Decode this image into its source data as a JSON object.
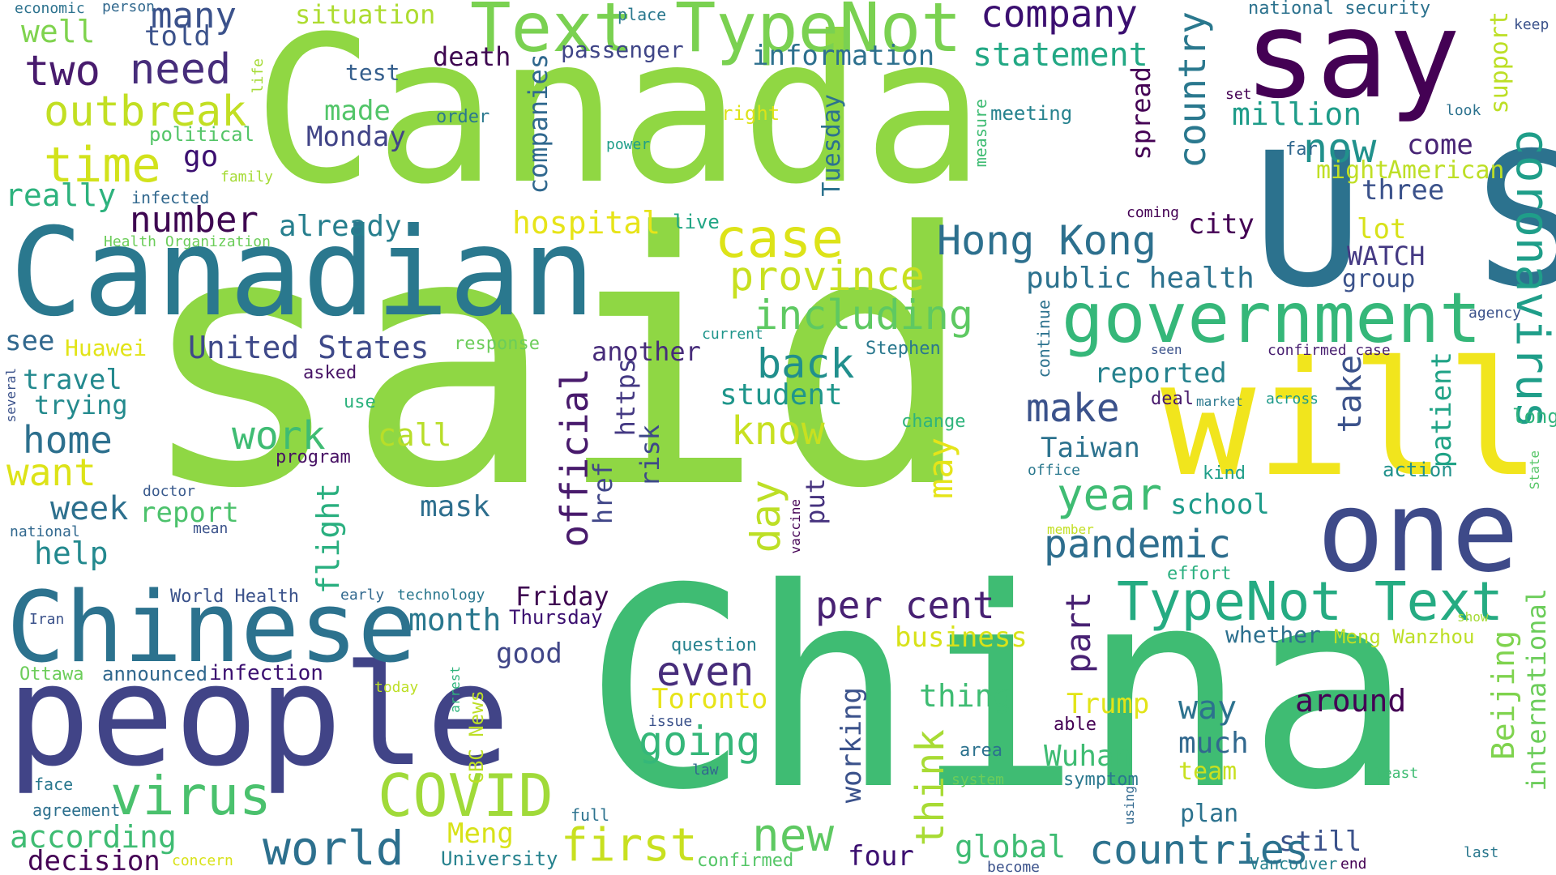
{
  "words": [
    {
      "text": "said",
      "color": "#8fd744"
    },
    {
      "text": "China",
      "color": "#3fbc73"
    },
    {
      "text": "Canada",
      "color": "#90d743"
    },
    {
      "text": "U S",
      "color": "#2c728e"
    },
    {
      "text": "Canadian",
      "color": "#2a788e"
    },
    {
      "text": "people",
      "color": "#414487"
    },
    {
      "text": "say",
      "color": "#440154"
    },
    {
      "text": "will",
      "color": "#f1e51d"
    },
    {
      "text": "one",
      "color": "#3e4a89"
    },
    {
      "text": "Chinese",
      "color": "#2c728e"
    },
    {
      "text": "Text TypeNot",
      "color": "#7ad151"
    },
    {
      "text": "government",
      "color": "#35b779"
    },
    {
      "text": "TypeNot Text",
      "color": "#25ab82"
    },
    {
      "text": "coronavirus",
      "color": "#1f9e89"
    },
    {
      "text": "COVID",
      "color": "#a0da39"
    },
    {
      "text": "virus",
      "color": "#4ac16d"
    },
    {
      "text": "outbreak",
      "color": "#c2df23"
    },
    {
      "text": "time",
      "color": "#d2e21b"
    },
    {
      "text": "two",
      "color": "#481b6d"
    },
    {
      "text": "need",
      "color": "#472d7b"
    },
    {
      "text": "many",
      "color": "#3b528b"
    },
    {
      "text": "company",
      "color": "#3b0f70"
    },
    {
      "text": "statement",
      "color": "#22a884"
    },
    {
      "text": "information",
      "color": "#2d708e"
    },
    {
      "text": "situation",
      "color": "#addc30"
    },
    {
      "text": "country",
      "color": "#2a788e"
    },
    {
      "text": "million",
      "color": "#1e9c89"
    },
    {
      "text": "now",
      "color": "#21918c"
    },
    {
      "text": "come",
      "color": "#482475"
    },
    {
      "text": "support",
      "color": "#bddf26"
    },
    {
      "text": "American",
      "color": "#bddf26"
    },
    {
      "text": "might",
      "color": "#c0df25"
    },
    {
      "text": "three",
      "color": "#3b528b"
    },
    {
      "text": "spread",
      "color": "#440154"
    },
    {
      "text": "companies",
      "color": "#30688e"
    },
    {
      "text": "Tuesday",
      "color": "#2c728e"
    },
    {
      "text": "death",
      "color": "#3e0751"
    },
    {
      "text": "passenger",
      "color": "#404688"
    },
    {
      "text": "test",
      "color": "#355f8d"
    },
    {
      "text": "made",
      "color": "#52c569"
    },
    {
      "text": "Monday",
      "color": "#414487"
    },
    {
      "text": "order",
      "color": "#2a788e"
    },
    {
      "text": "right",
      "color": "#dde318"
    },
    {
      "text": "meeting",
      "color": "#26828e"
    },
    {
      "text": "power",
      "color": "#1f9e89"
    },
    {
      "text": "political",
      "color": "#54c568"
    },
    {
      "text": "family",
      "color": "#a5db36"
    },
    {
      "text": "infected",
      "color": "#31688e"
    },
    {
      "text": "really",
      "color": "#2db27d"
    },
    {
      "text": "number",
      "color": "#3e0751"
    },
    {
      "text": "go",
      "color": "#3b0f70"
    },
    {
      "text": "hospital",
      "color": "#e7e419"
    },
    {
      "text": "live",
      "color": "#21a685"
    },
    {
      "text": "already",
      "color": "#277f8e"
    },
    {
      "text": "case",
      "color": "#dde318"
    },
    {
      "text": "Hong Kong",
      "color": "#2d708e"
    },
    {
      "text": "city",
      "color": "#440154"
    },
    {
      "text": "lot",
      "color": "#d8e219"
    },
    {
      "text": "WATCH",
      "color": "#443983"
    },
    {
      "text": "group",
      "color": "#3b528b"
    },
    {
      "text": "province",
      "color": "#c8e020"
    },
    {
      "text": "including",
      "color": "#5ec962"
    },
    {
      "text": "public health",
      "color": "#2c728e"
    },
    {
      "text": "Huawei",
      "color": "#e2e418"
    },
    {
      "text": "United States",
      "color": "#3e4989"
    },
    {
      "text": "response",
      "color": "#6ccd5a"
    },
    {
      "text": "another",
      "color": "#472c7a"
    },
    {
      "text": "current",
      "color": "#1f958b"
    },
    {
      "text": "Stephen",
      "color": "#2a788e"
    },
    {
      "text": "confirmed case",
      "color": "#481f70"
    },
    {
      "text": "agency",
      "color": "#3b528b"
    },
    {
      "text": "see",
      "color": "#31688e"
    },
    {
      "text": "travel",
      "color": "#23898e"
    },
    {
      "text": "trying",
      "color": "#238a8d"
    },
    {
      "text": "home",
      "color": "#2d708e"
    },
    {
      "text": "want",
      "color": "#dde318"
    },
    {
      "text": "work",
      "color": "#3fbc73"
    },
    {
      "text": "call",
      "color": "#b8de29"
    },
    {
      "text": "back",
      "color": "#218f8d"
    },
    {
      "text": "student",
      "color": "#1f968b"
    },
    {
      "text": "know",
      "color": "#c8e020"
    },
    {
      "text": "official",
      "color": "#481a6c"
    },
    {
      "text": "https",
      "color": "#443983"
    },
    {
      "text": "href",
      "color": "#404688"
    },
    {
      "text": "risk",
      "color": "#3e4989"
    },
    {
      "text": "make",
      "color": "#3b528b"
    },
    {
      "text": "reported",
      "color": "#26828e"
    },
    {
      "text": "take",
      "color": "#3b528b"
    },
    {
      "text": "patient",
      "color": "#20a386"
    },
    {
      "text": "long",
      "color": "#2fb47c"
    },
    {
      "text": "across",
      "color": "#1f9a8a"
    },
    {
      "text": "market",
      "color": "#2a788e"
    },
    {
      "text": "deal",
      "color": "#481a6c"
    },
    {
      "text": "seen",
      "color": "#3b528b"
    },
    {
      "text": "continue",
      "color": "#2c728e"
    },
    {
      "text": "Taiwan",
      "color": "#2c728e"
    },
    {
      "text": "year",
      "color": "#3fbc73"
    },
    {
      "text": "school",
      "color": "#1e9b8a"
    },
    {
      "text": "pandemic",
      "color": "#2e6e8e"
    },
    {
      "text": "day",
      "color": "#bddf26"
    },
    {
      "text": "may",
      "color": "#e5e419"
    },
    {
      "text": "put",
      "color": "#46327e"
    },
    {
      "text": "change",
      "color": "#2fb47c"
    },
    {
      "text": "action",
      "color": "#21918c"
    },
    {
      "text": "kind",
      "color": "#1f9e89"
    },
    {
      "text": "office",
      "color": "#2a788e"
    },
    {
      "text": "State",
      "color": "#56c667"
    },
    {
      "text": "week",
      "color": "#2d708e"
    },
    {
      "text": "report",
      "color": "#4cc26c"
    },
    {
      "text": "mask",
      "color": "#2e6f8e"
    },
    {
      "text": "flight",
      "color": "#29af7f"
    },
    {
      "text": "help",
      "color": "#23898e"
    },
    {
      "text": "asked",
      "color": "#481467"
    },
    {
      "text": "use",
      "color": "#2db27d"
    },
    {
      "text": "program",
      "color": "#471164"
    },
    {
      "text": "doctor",
      "color": "#38598c"
    },
    {
      "text": "mean",
      "color": "#3b528b"
    },
    {
      "text": "national",
      "color": "#31688e"
    },
    {
      "text": "several",
      "color": "#3b528b"
    },
    {
      "text": "vaccine",
      "color": "#440154"
    },
    {
      "text": "member",
      "color": "#c2df23"
    },
    {
      "text": "effort",
      "color": "#29af7f"
    },
    {
      "text": "Friday",
      "color": "#3e0751"
    },
    {
      "text": "per cent",
      "color": "#482173"
    },
    {
      "text": "part",
      "color": "#482173"
    },
    {
      "text": "business",
      "color": "#d8e219"
    },
    {
      "text": "whether",
      "color": "#2d708e"
    },
    {
      "text": "Meng Wanzhou",
      "color": "#bddf26"
    },
    {
      "text": "Beijing",
      "color": "#7fd34e"
    },
    {
      "text": "international",
      "color": "#6ccd5a"
    },
    {
      "text": "show",
      "color": "#a5db36"
    },
    {
      "text": "World Health",
      "color": "#3b528b"
    },
    {
      "text": "early",
      "color": "#31688e"
    },
    {
      "text": "technology",
      "color": "#2a788e"
    },
    {
      "text": "Iran",
      "color": "#3b528b"
    },
    {
      "text": "month",
      "color": "#2a788e"
    },
    {
      "text": "Thursday",
      "color": "#3b0f70"
    },
    {
      "text": "good",
      "color": "#404688"
    },
    {
      "text": "question",
      "color": "#26828e"
    },
    {
      "text": "even",
      "color": "#472d7b"
    },
    {
      "text": "going",
      "color": "#35b779"
    },
    {
      "text": "Toronto",
      "color": "#e7e419"
    },
    {
      "text": "thing",
      "color": "#3fbc73"
    },
    {
      "text": "Trump",
      "color": "#e2e418"
    },
    {
      "text": "around",
      "color": "#440154"
    },
    {
      "text": "way",
      "color": "#2c728e"
    },
    {
      "text": "much",
      "color": "#31688e"
    },
    {
      "text": "team",
      "color": "#c8e020"
    },
    {
      "text": "Wuhan",
      "color": "#3fbc73"
    },
    {
      "text": "working",
      "color": "#3b528b"
    },
    {
      "text": "think",
      "color": "#a8db34"
    },
    {
      "text": "able",
      "color": "#440154"
    },
    {
      "text": "area",
      "color": "#2c728e"
    },
    {
      "text": "system",
      "color": "#6ccd5a"
    },
    {
      "text": "symptom",
      "color": "#2a788e"
    },
    {
      "text": "using",
      "color": "#31688e"
    },
    {
      "text": "least",
      "color": "#3fbc73"
    },
    {
      "text": "plan",
      "color": "#2c728e"
    },
    {
      "text": "still",
      "color": "#3b528b"
    },
    {
      "text": "Vancouver",
      "color": "#26828e"
    },
    {
      "text": "last",
      "color": "#2a788e"
    },
    {
      "text": "end",
      "color": "#440154"
    },
    {
      "text": "become",
      "color": "#3b528b"
    },
    {
      "text": "countries",
      "color": "#2c728e"
    },
    {
      "text": "global",
      "color": "#3fbc73"
    },
    {
      "text": "four",
      "color": "#3b0f70"
    },
    {
      "text": "confirmed",
      "color": "#55c667"
    },
    {
      "text": "first",
      "color": "#c8e020"
    },
    {
      "text": "new",
      "color": "#5ec962"
    },
    {
      "text": "world",
      "color": "#2d708e"
    },
    {
      "text": "full",
      "color": "#2c728e"
    },
    {
      "text": "law",
      "color": "#31688e"
    },
    {
      "text": "issue",
      "color": "#3b528b"
    },
    {
      "text": "Meng",
      "color": "#d8e219"
    },
    {
      "text": "University",
      "color": "#26828e"
    },
    {
      "text": "CBC News",
      "color": "#bddf26"
    },
    {
      "text": "arrest",
      "color": "#2fb47c"
    },
    {
      "text": "concern",
      "color": "#d8e219"
    },
    {
      "text": "according",
      "color": "#3fbc73"
    },
    {
      "text": "decision",
      "color": "#440154"
    },
    {
      "text": "face",
      "color": "#2a788e"
    },
    {
      "text": "agreement",
      "color": "#2d708e"
    },
    {
      "text": "Ottawa",
      "color": "#6ccd5a"
    },
    {
      "text": "announced",
      "color": "#31688e"
    },
    {
      "text": "infection",
      "color": "#3b0f70"
    },
    {
      "text": "today",
      "color": "#bddf26"
    },
    {
      "text": "economic",
      "color": "#2c728e"
    },
    {
      "text": "person",
      "color": "#31688e"
    },
    {
      "text": "well",
      "color": "#7fd34e"
    },
    {
      "text": "told",
      "color": "#3b528b"
    },
    {
      "text": "life",
      "color": "#a5db36"
    },
    {
      "text": "place",
      "color": "#2a788e"
    },
    {
      "text": "national security",
      "color": "#2c728e"
    },
    {
      "text": "keep",
      "color": "#3b528b"
    },
    {
      "text": "set",
      "color": "#440154"
    },
    {
      "text": "look",
      "color": "#2c728e"
    },
    {
      "text": "far",
      "color": "#31688e"
    },
    {
      "text": "measure",
      "color": "#3fbc73"
    },
    {
      "text": "coming",
      "color": "#440154"
    },
    {
      "text": "Health Organization",
      "color": "#6ccd5a"
    }
  ]
}
